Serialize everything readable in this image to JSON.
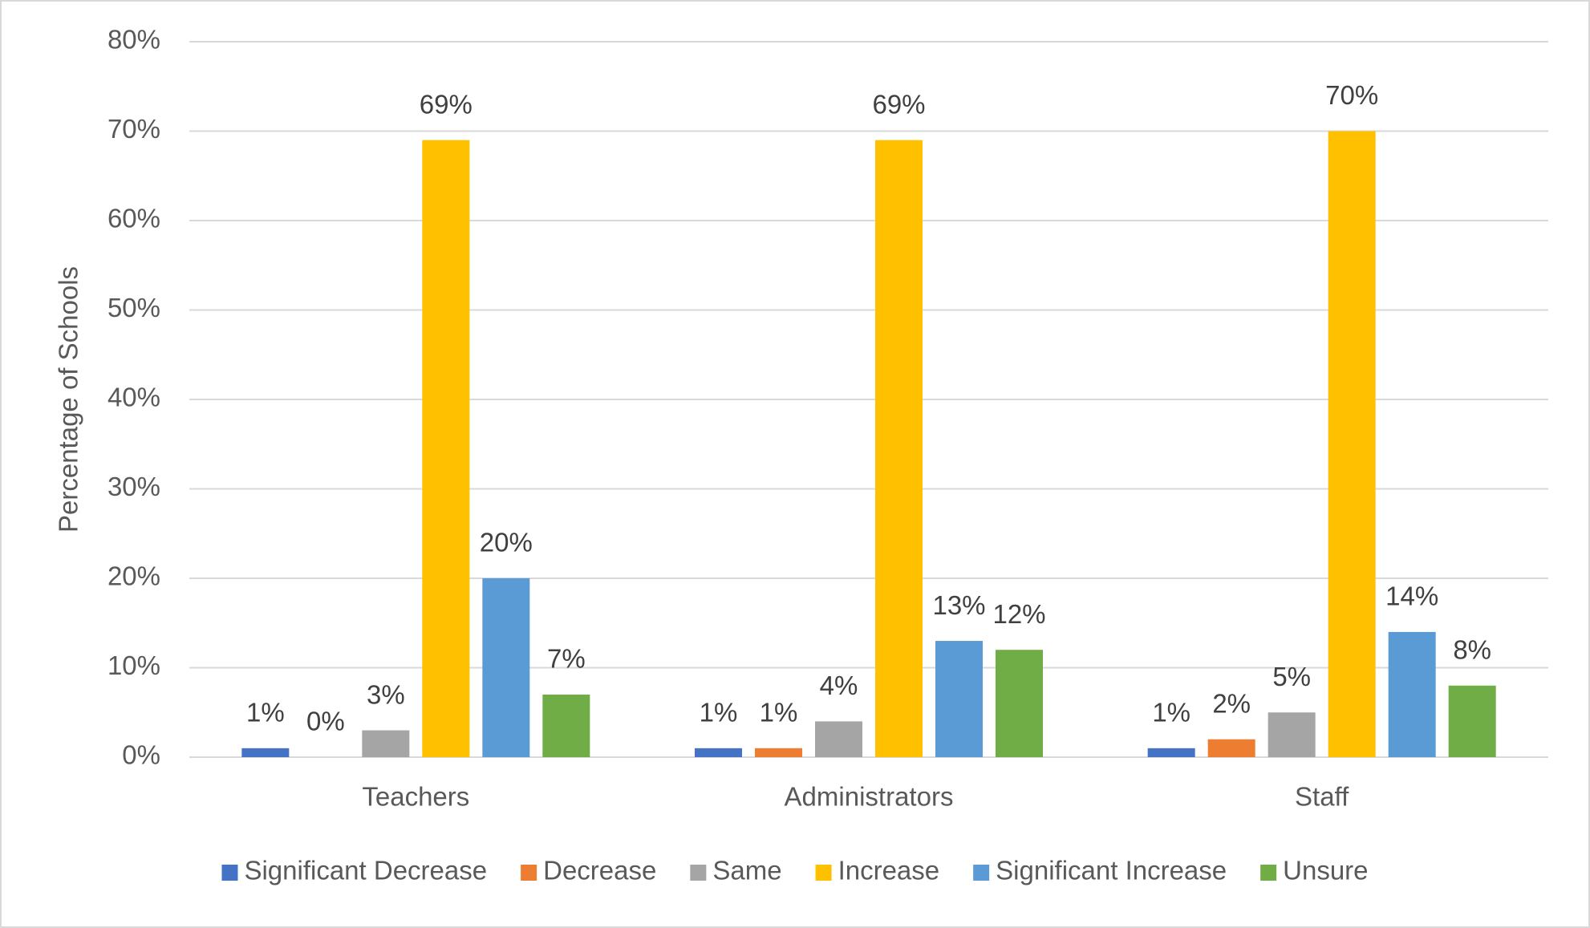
{
  "chart_data": {
    "type": "bar",
    "y_label": "Percentage of Schools",
    "categories": [
      "Teachers",
      "Administrators",
      "Staff"
    ],
    "series": [
      {
        "name": "Significant Decrease",
        "color": "#4472c4",
        "values": [
          1,
          1,
          1
        ],
        "value_labels": [
          "1%",
          "1%",
          "1%"
        ]
      },
      {
        "name": "Decrease",
        "color": "#ed7d31",
        "values": [
          0,
          1,
          2
        ],
        "value_labels": [
          "0%",
          "1%",
          "2%"
        ]
      },
      {
        "name": "Same",
        "color": "#a5a5a5",
        "values": [
          3,
          4,
          5
        ],
        "value_labels": [
          "3%",
          "4%",
          "5%"
        ]
      },
      {
        "name": "Increase",
        "color": "#ffc000",
        "values": [
          69,
          69,
          70
        ],
        "value_labels": [
          "69%",
          "69%",
          "70%"
        ]
      },
      {
        "name": "Significant Increase",
        "color": "#5b9bd5",
        "values": [
          20,
          13,
          14
        ],
        "value_labels": [
          "20%",
          "13%",
          "14%"
        ]
      },
      {
        "name": "Unsure",
        "color": "#70ad47",
        "values": [
          7,
          12,
          8
        ],
        "value_labels": [
          "7%",
          "12%",
          "8%"
        ]
      }
    ],
    "ylim": [
      0,
      80
    ],
    "yticks": [
      {
        "value": 0,
        "label": "0%"
      },
      {
        "value": 10,
        "label": "10%"
      },
      {
        "value": 20,
        "label": "20%"
      },
      {
        "value": 30,
        "label": "30%"
      },
      {
        "value": 40,
        "label": "40%"
      },
      {
        "value": 50,
        "label": "50%"
      },
      {
        "value": 60,
        "label": "60%"
      },
      {
        "value": 70,
        "label": "70%"
      },
      {
        "value": 80,
        "label": "80%"
      }
    ],
    "grid": true,
    "legend": "bottom"
  }
}
